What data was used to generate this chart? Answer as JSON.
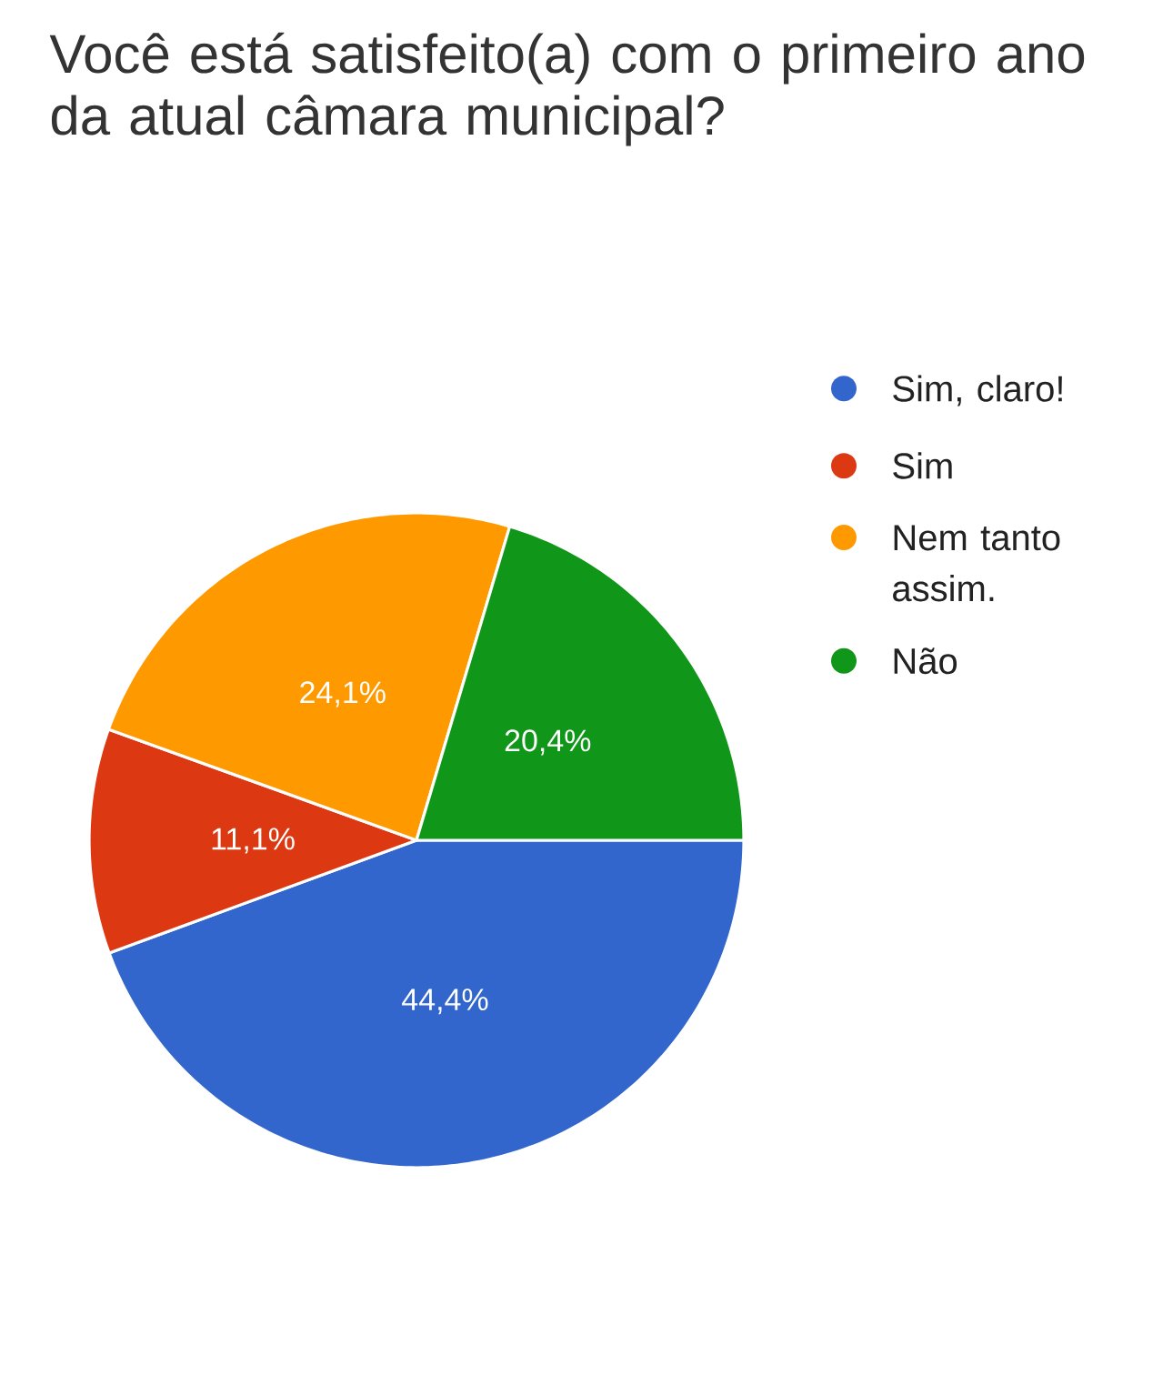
{
  "chart_data": {
    "type": "pie",
    "title": "Você está satisfeito(a) com o primeiro ano da atual câmara municipal?",
    "categories": [
      "Sim, claro!",
      "Sim",
      "Nem tanto assim.",
      "Não"
    ],
    "values": [
      44.4,
      11.1,
      24.1,
      20.4
    ],
    "colors": [
      "#3366cc",
      "#dc3912",
      "#ff9900",
      "#109618"
    ],
    "value_labels": [
      "44,4%",
      "11,1%",
      "24,1%",
      "20,4%"
    ],
    "legend": "right"
  }
}
